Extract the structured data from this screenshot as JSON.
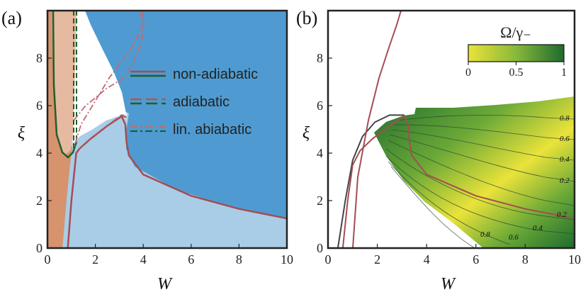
{
  "chart_data": [
    {
      "type": "area",
      "panel_label": "(a)",
      "xlabel": "W",
      "ylabel": "ξ",
      "xlim": [
        0,
        10
      ],
      "ylim": [
        0,
        10
      ],
      "xticks": [
        "0",
        "2",
        "4",
        "6",
        "8",
        "10"
      ],
      "yticks": [
        "0",
        "2",
        "4",
        "6",
        "8"
      ],
      "colors": {
        "dark_blue": "#4f9bd1",
        "light_blue": "#a9cde7",
        "very_light_blue": "#dce9f5",
        "orange": "#d7936d",
        "light_orange": "#e6b9a1",
        "non_adiabatic_line": "#a44d52",
        "adiabatic_line": "#b0545b",
        "lin_adiabatic_line": "#c16a72",
        "green_line": "#1f5f2a"
      },
      "legend": [
        {
          "label": "non-adiabatic",
          "style": "solid"
        },
        {
          "label": "adiabatic",
          "style": "dashed"
        },
        {
          "label": "lin. abiabatic",
          "style": "dashdot"
        }
      ],
      "series": [
        {
          "name": "non-adiabatic",
          "x": [
            10,
            8,
            6,
            4,
            3.4,
            3.3,
            3.25,
            3.1,
            2.5,
            1.8,
            1.35,
            1.2,
            1.0,
            0.85
          ],
          "y": [
            1.25,
            1.65,
            2.2,
            3.1,
            3.9,
            4.5,
            5.2,
            5.55,
            5.15,
            4.6,
            4.2,
            4.0,
            2.0,
            0
          ]
        },
        {
          "name": "adiabatic",
          "x": [
            3.3,
            3.1,
            2.5,
            1.8,
            1.35,
            1.2
          ],
          "y": [
            5.5,
            5.6,
            5.15,
            4.6,
            4.2,
            4.0
          ]
        },
        {
          "name": "lin. abiabatic",
          "x": [
            4.0,
            3.9,
            3.6,
            3.2,
            2.6,
            2.0,
            1.4,
            1.1
          ],
          "y": [
            10,
            9.2,
            8.6,
            8.0,
            7.2,
            6.2,
            5.2,
            4.2
          ]
        }
      ]
    },
    {
      "type": "heatmap",
      "panel_label": "(b)",
      "xlabel": "W",
      "ylabel": "ξ",
      "xlim": [
        0,
        10
      ],
      "ylim": [
        0,
        10
      ],
      "xticks": [
        "0",
        "2",
        "4",
        "6",
        "8",
        "10"
      ],
      "yticks": [
        "0",
        "2",
        "4",
        "6",
        "8"
      ],
      "colorbar": {
        "title": "Ω/γ₋",
        "ticks": [
          "0",
          "0.5",
          "1"
        ],
        "range": [
          0,
          1
        ],
        "colors": [
          "#eae33a",
          "#1d6b2e"
        ]
      },
      "contour_labels": [
        "0.8",
        "0.6",
        "0.4",
        "0.2",
        "0.2",
        "0.4",
        "0.6",
        "0.8"
      ],
      "series": [
        {
          "name": "boundary",
          "x": [
            0.4,
            0.7,
            1.0,
            1.4,
            1.9,
            2.5,
            3.1
          ],
          "y": [
            0,
            2.0,
            3.7,
            4.7,
            5.3,
            5.6,
            5.6
          ]
        },
        {
          "name": "non-adiabatic",
          "x": [
            10,
            8,
            6,
            4,
            3.4,
            3.3,
            3.25,
            3.1,
            2.5,
            1.8,
            1.3,
            1.0,
            0.8,
            0.6
          ],
          "y": [
            1.25,
            1.65,
            2.2,
            3.1,
            3.9,
            4.5,
            5.2,
            5.55,
            5.15,
            4.6,
            4.1,
            3.5,
            2.0,
            0
          ]
        }
      ]
    }
  ]
}
